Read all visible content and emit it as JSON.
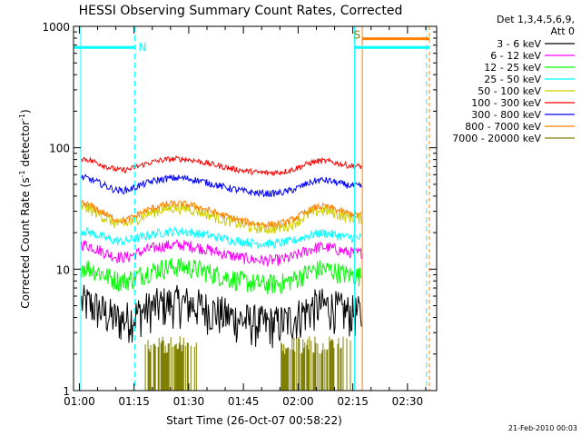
{
  "chart_data": {
    "type": "line",
    "title": "HESSI Observing Summary Count Rates, Corrected",
    "xlabel": "Start Time (26-Oct-07 00:58:22)",
    "ylabel_main": "Corrected Count Rate (s",
    "ylabel_sup1": "-1",
    "ylabel_mid": " detector",
    "ylabel_sup2": "-1",
    "ylabel_end": ")",
    "y_scale": "log",
    "ylim": [
      1,
      1000
    ],
    "xlim_minutes": [
      58.4,
      158
    ],
    "x_tick_labels": [
      "01:00",
      "01:15",
      "01:30",
      "01:45",
      "02:00",
      "02:15",
      "02:30"
    ],
    "x_tick_minutes": [
      60,
      75,
      90,
      105,
      120,
      135,
      150
    ],
    "y_tick_labels": [
      "1",
      "10",
      "100",
      "1000"
    ],
    "y_tick_values": [
      1,
      10,
      100,
      1000
    ],
    "legend_header": [
      "Det 1,3,4,5,6,9,",
      "Att 0"
    ],
    "legend_placement": "right",
    "series": [
      {
        "name": "3 - 6 keV",
        "color": "#000000",
        "base": 4.3,
        "noise": 0.18,
        "shape": 0.6
      },
      {
        "name": "6 - 12 keV",
        "color": "#ff00ff",
        "base": 13.5,
        "noise": 0.05,
        "shape": 0.45
      },
      {
        "name": "12 - 25 keV",
        "color": "#00ff00",
        "base": 8.8,
        "noise": 0.09,
        "shape": 0.5
      },
      {
        "name": "25 - 50 keV",
        "color": "#00ffff",
        "base": 18.0,
        "noise": 0.04,
        "shape": 0.35
      },
      {
        "name": "50 - 100 keV",
        "color": "#cccc00",
        "base": 26.0,
        "noise": 0.05,
        "shape": 0.6
      },
      {
        "name": "100 - 300 keV",
        "color": "#ff0000",
        "base": 70.0,
        "noise": 0.025,
        "shape": 0.4
      },
      {
        "name": "300 - 800 keV",
        "color": "#0000ff",
        "base": 48.0,
        "noise": 0.03,
        "shape": 0.45
      },
      {
        "name": "800 - 7000 keV",
        "color": "#ff8000",
        "base": 28.0,
        "noise": 0.03,
        "shape": 0.6
      },
      {
        "name": "7000 - 20000 keV",
        "color": "#808000",
        "base": 2.2,
        "noise": 0.0,
        "shape": 0.0
      }
    ],
    "markers": [
      {
        "label": "N",
        "x_minutes": 75.2,
        "color": "#00ffff"
      },
      {
        "label": "S",
        "x_minutes": 136.2,
        "color": "#808000"
      }
    ],
    "data_end_minutes": 137.5,
    "footer_date": "21-Feb-2010 00:03"
  }
}
